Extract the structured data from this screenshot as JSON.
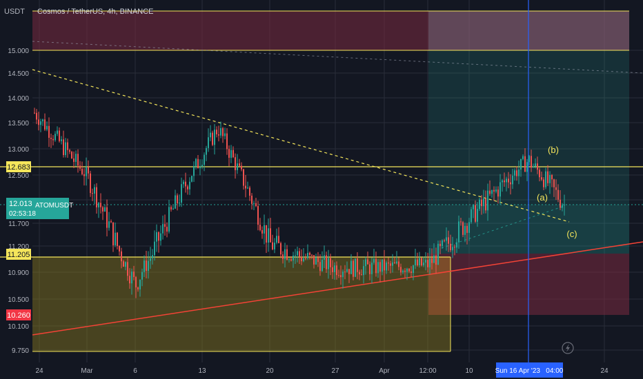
{
  "header": {
    "title": "Cosmos / TetherUS, 4h, BINANCE",
    "currency": "USDT"
  },
  "price_axis": {
    "ticks": [
      "15.000",
      "14.500",
      "14.000",
      "13.500",
      "13.000",
      "12.500",
      "12.000",
      "11.700",
      "11.200",
      "10.900",
      "10.500",
      "10.100",
      "9.750"
    ]
  },
  "time_axis": {
    "ticks": [
      "24",
      "Mar",
      "6",
      "13",
      "20",
      "27",
      "Apr",
      "12:00",
      "10",
      "24"
    ],
    "crosshair_label": "Sun 16 Apr '23   04:00"
  },
  "badges": {
    "level_upper": "12.683",
    "current_price": "12.013",
    "countdown": "02:53:18",
    "symbol": "ATOMUSDT",
    "level_lower": "11.205",
    "low_level": "10.260"
  },
  "annotations": {
    "a": "(a)",
    "b": "(b)",
    "c": "(c)"
  },
  "colors": {
    "background": "#131722",
    "up": "#26a69a",
    "down": "#ef5350",
    "level_line": "#f5e65b",
    "trend_line": "#f44336",
    "crosshair": "#2962ff",
    "annotation": "#f5e65b"
  },
  "chart_data": {
    "type": "candlestick",
    "symbol": "ATOMUSDT",
    "interval": "4h",
    "exchange": "BINANCE",
    "y_range": [
      9.75,
      15.25
    ],
    "horizontal_levels": [
      15.0,
      12.683,
      11.205
    ],
    "current_price": 12.013,
    "price_path": [
      [
        "24",
        13.7
      ],
      [
        "Mar",
        12.5
      ],
      [
        "6",
        10.7
      ],
      [
        "13",
        13.4
      ],
      [
        "20",
        11.4
      ],
      [
        "27",
        11.0
      ],
      [
        "Apr",
        11.0
      ],
      [
        "12:00",
        11.05
      ],
      [
        "Apr 16",
        12.8
      ],
      [
        "Apr 18",
        12.01
      ]
    ]
  }
}
